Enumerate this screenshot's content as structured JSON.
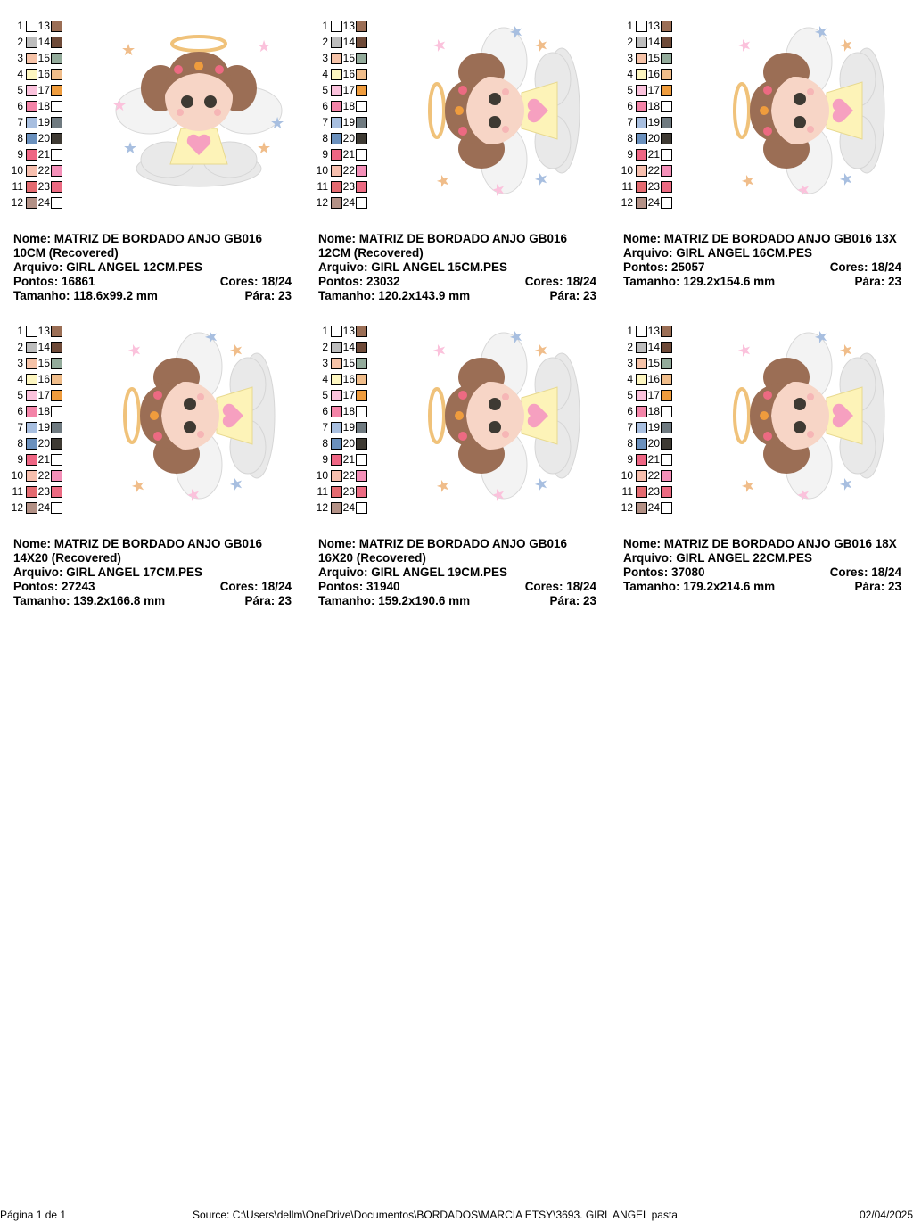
{
  "palette": [
    {
      "n": "1",
      "color": "#ffffff"
    },
    {
      "n": "2",
      "color": "#bdbdbd"
    },
    {
      "n": "3",
      "color": "#f6c3a8"
    },
    {
      "n": "4",
      "color": "#fdf6c0"
    },
    {
      "n": "5",
      "color": "#fbc2dc"
    },
    {
      "n": "6",
      "color": "#f484a8"
    },
    {
      "n": "7",
      "color": "#a8bfe0"
    },
    {
      "n": "8",
      "color": "#6a90bd"
    },
    {
      "n": "9",
      "color": "#ee6583"
    },
    {
      "n": "10",
      "color": "#f7bfae"
    },
    {
      "n": "11",
      "color": "#e46a70"
    },
    {
      "n": "12",
      "color": "#b39186"
    },
    {
      "n": "13",
      "color": "#9b6e55"
    },
    {
      "n": "14",
      "color": "#6e4a38"
    },
    {
      "n": "15",
      "color": "#93ab9b"
    },
    {
      "n": "16",
      "color": "#f0bd8a"
    },
    {
      "n": "17",
      "color": "#ef9c3d"
    },
    {
      "n": "18",
      "color": "#ffffff"
    },
    {
      "n": "19",
      "color": "#6f7a80"
    },
    {
      "n": "20",
      "color": "#3e3a33"
    },
    {
      "n": "21",
      "color": "#ffffff"
    },
    {
      "n": "22",
      "color": "#f48fb8"
    },
    {
      "n": "23",
      "color": "#ec6a82"
    },
    {
      "n": "24",
      "color": "#ffffff"
    }
  ],
  "labels": {
    "nome": "Nome: ",
    "arquivo": "Arquivo: ",
    "pontos": "Pontos: ",
    "cores": "Cores: ",
    "tamanho": "Tamanho: ",
    "para": "Pára: "
  },
  "designs": [
    {
      "nome": "MATRIZ DE BORDADO ANJO GB016 10CM (Recovered)",
      "arquivo": "GIRL ANGEL 12CM.PES",
      "pontos": "16861",
      "cores": "18/24",
      "tamanho": "118.6x99.2 mm",
      "para": "23",
      "rotated": false
    },
    {
      "nome": "MATRIZ DE BORDADO ANJO GB016 12CM (Recovered)",
      "arquivo": "GIRL ANGEL 15CM.PES",
      "pontos": "23032",
      "cores": "18/24",
      "tamanho": "120.2x143.9 mm",
      "para": "23",
      "rotated": true
    },
    {
      "nome": "MATRIZ DE BORDADO ANJO GB016 13X",
      "arquivo": "GIRL ANGEL 16CM.PES",
      "pontos": "25057",
      "cores": "18/24",
      "tamanho": "129.2x154.6 mm",
      "para": "23",
      "rotated": true
    },
    {
      "nome": "MATRIZ DE BORDADO ANJO GB016 14X20 (Recovered)",
      "arquivo": "GIRL ANGEL 17CM.PES",
      "pontos": "27243",
      "cores": "18/24",
      "tamanho": "139.2x166.8 mm",
      "para": "23",
      "rotated": true
    },
    {
      "nome": "MATRIZ DE BORDADO ANJO GB016 16X20 (Recovered)",
      "arquivo": "GIRL ANGEL 19CM.PES",
      "pontos": "31940",
      "cores": "18/24",
      "tamanho": "159.2x190.6 mm",
      "para": "23",
      "rotated": true
    },
    {
      "nome": "MATRIZ DE BORDADO ANJO GB016 18X",
      "arquivo": "GIRL ANGEL 22CM.PES",
      "pontos": "37080",
      "cores": "18/24",
      "tamanho": "179.2x214.6 mm",
      "para": "23",
      "rotated": true
    }
  ],
  "footer": {
    "page": "Página 1 de 1",
    "source": "Source: C:\\Users\\dellm\\OneDrive\\Documentos\\BORDADOS\\MARCIA ETSY\\3693. GIRL ANGEL pasta",
    "date": "02/04/2025"
  }
}
